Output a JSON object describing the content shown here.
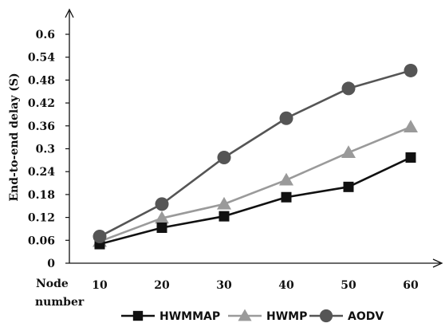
{
  "chart_data": {
    "type": "line",
    "title": "",
    "xlabel": "Node number",
    "ylabel": "End-to-end delay (S)",
    "x": [
      10,
      20,
      30,
      40,
      50,
      60
    ],
    "xticks": [
      "10",
      "20",
      "30",
      "40",
      "50",
      "60"
    ],
    "yticks": [
      "0",
      "0.06",
      "0.12",
      "0.18",
      "0.24",
      "0.3",
      "0.36",
      "0.42",
      "0.48",
      "0.54",
      "0.6"
    ],
    "ylim": [
      0,
      0.6
    ],
    "grid": false,
    "legend": "bottom",
    "series": [
      {
        "name": "HWMMAP",
        "marker": "square",
        "color": "#111111",
        "values": [
          0.05,
          0.093,
          0.123,
          0.173,
          0.2,
          0.277
        ]
      },
      {
        "name": "HWMP",
        "marker": "triangle",
        "color": "#9a9a9a",
        "values": [
          0.057,
          0.118,
          0.155,
          0.218,
          0.29,
          0.357
        ]
      },
      {
        "name": "AODV",
        "marker": "circle",
        "color": "#555555",
        "values": [
          0.07,
          0.155,
          0.277,
          0.38,
          0.458,
          0.505
        ]
      }
    ]
  }
}
